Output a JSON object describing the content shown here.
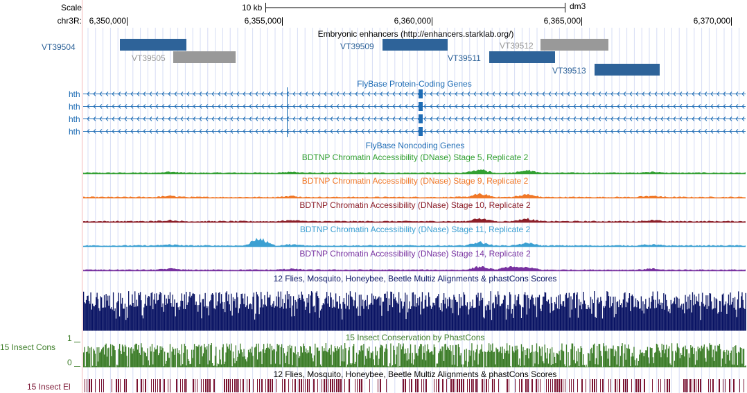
{
  "ruler": {
    "scale_label": "Scale",
    "scale_bar_label": "10 kb",
    "assembly": "dm3",
    "chrom_label": "chr3R:",
    "positions": [
      "6,350,000",
      "6,355,000",
      "6,360,000",
      "6,365,000",
      "6,370,000"
    ]
  },
  "tracks": {
    "enhancers": {
      "title": "Embryonic enhancers (http://enhancers.starklab.org/)",
      "features": [
        {
          "name": "VT39504",
          "color": "#2e6399"
        },
        {
          "name": "VT39505",
          "color": "#999999"
        },
        {
          "name": "VT39509",
          "color": "#2e6399"
        },
        {
          "name": "VT39511",
          "color": "#2e6399"
        },
        {
          "name": "VT39512",
          "color": "#999999"
        },
        {
          "name": "VT39513",
          "color": "#2e6399"
        }
      ]
    },
    "protein_genes": {
      "title": "FlyBase Protein-Coding Genes",
      "color": "#1e6cb5",
      "transcripts": [
        "hth",
        "hth",
        "hth",
        "hth"
      ]
    },
    "noncoding_genes": {
      "title": "FlyBase Noncoding Genes",
      "color": "#1e6cb5"
    },
    "dnase": [
      {
        "title": "BDTNP Chromatin Accessibility (DNase) Stage 5, Replicate 2",
        "color": "#32a032"
      },
      {
        "title": "BDTNP Chromatin Accessibility (DNase) Stage 9, Replicate 2",
        "color": "#f07828"
      },
      {
        "title": "BDTNP Chromatin Accessibility (DNase) Stage 10, Replicate 2",
        "color": "#8c1e28"
      },
      {
        "title": "BDTNP Chromatin Accessibility (DNase) Stage 11, Replicate 2",
        "color": "#3ca0d2"
      },
      {
        "title": "BDTNP Chromatin Accessibility (DNase) Stage 14, Replicate 2",
        "color": "#7832a0"
      }
    ],
    "multiz": {
      "title": "12 Flies, Mosquito, Honeybee, Beetle Multiz Alignments & phastCons Scores",
      "color": "#0a1464"
    },
    "cons15": {
      "title": "15 Insect Conservation by PhastCons",
      "side_label": "15 Insect Cons",
      "y_max": "1",
      "y_min": "0",
      "color": "#3c7d28"
    },
    "elements": {
      "title": "12 Flies, Mosquito, Honeybee, Beetle Multiz Alignments & phastCons Scores",
      "side_label": "15 Insect El",
      "color": "#7a1432"
    }
  }
}
